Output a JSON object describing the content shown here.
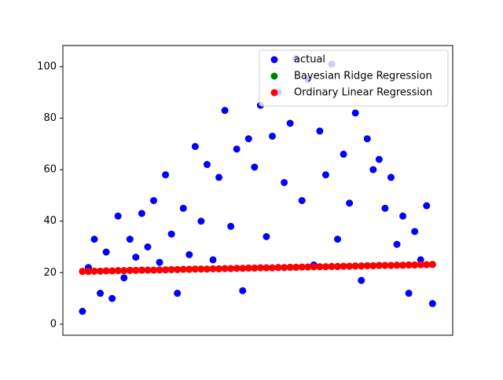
{
  "chart_data": {
    "type": "scatter",
    "x": [
      0,
      1,
      2,
      3,
      4,
      5,
      6,
      7,
      8,
      9,
      10,
      11,
      12,
      13,
      14,
      15,
      16,
      17,
      18,
      19,
      20,
      21,
      22,
      23,
      24,
      25,
      26,
      27,
      28,
      29,
      30,
      31,
      32,
      33,
      34,
      35,
      36,
      37,
      38,
      39,
      40,
      41,
      42,
      43,
      44,
      45,
      46,
      47,
      48,
      49,
      50,
      51,
      52,
      53,
      54,
      55,
      56,
      57,
      58,
      59
    ],
    "xlim": [
      -3.3,
      62.4
    ],
    "ylim": [
      -4.3,
      108.2
    ],
    "yticks": [
      0,
      20,
      40,
      60,
      80,
      100
    ],
    "legend": "upper right",
    "series": [
      {
        "name": "actual",
        "color": "#0000ff",
        "values": [
          5,
          22,
          33,
          12,
          28,
          10,
          42,
          18,
          33,
          26,
          43,
          30,
          48,
          24,
          58,
          35,
          12,
          45,
          27,
          69,
          40,
          62,
          25,
          57,
          83,
          38,
          68,
          13,
          72,
          61,
          85,
          34,
          73,
          90,
          55,
          78,
          103,
          48,
          95,
          23,
          75,
          58,
          101,
          33,
          66,
          47,
          82,
          17,
          72,
          60,
          64,
          45,
          57,
          31,
          42,
          12,
          36,
          25,
          46,
          8
        ]
      },
      {
        "name": "Bayesian Ridge Regression",
        "color": "#008000",
        "values": [
          20.5,
          20.5,
          20.6,
          20.6,
          20.7,
          20.7,
          20.8,
          20.8,
          20.9,
          20.9,
          21.0,
          21.0,
          21.0,
          21.1,
          21.1,
          21.2,
          21.2,
          21.3,
          21.3,
          21.4,
          21.4,
          21.4,
          21.5,
          21.5,
          21.6,
          21.6,
          21.7,
          21.7,
          21.8,
          21.8,
          21.9,
          21.9,
          21.9,
          22.0,
          22.0,
          22.1,
          22.1,
          22.2,
          22.2,
          22.3,
          22.3,
          22.3,
          22.4,
          22.4,
          22.5,
          22.5,
          22.6,
          22.6,
          22.7,
          22.7,
          22.8,
          22.8,
          22.8,
          22.9,
          22.9,
          23.0,
          23.0,
          23.1,
          23.1,
          23.2
        ]
      },
      {
        "name": "Ordinary Linear Regression",
        "color": "#ff0000",
        "values": [
          20.5,
          20.5,
          20.6,
          20.6,
          20.7,
          20.7,
          20.8,
          20.8,
          20.9,
          20.9,
          21.0,
          21.0,
          21.0,
          21.1,
          21.1,
          21.2,
          21.2,
          21.3,
          21.3,
          21.4,
          21.4,
          21.4,
          21.5,
          21.5,
          21.6,
          21.6,
          21.7,
          21.7,
          21.8,
          21.8,
          21.9,
          21.9,
          21.9,
          22.0,
          22.0,
          22.1,
          22.1,
          22.2,
          22.2,
          22.3,
          22.3,
          22.3,
          22.4,
          22.4,
          22.5,
          22.5,
          22.6,
          22.6,
          22.7,
          22.7,
          22.8,
          22.8,
          22.8,
          22.9,
          22.9,
          23.0,
          23.0,
          23.1,
          23.1,
          23.2
        ]
      }
    ]
  }
}
